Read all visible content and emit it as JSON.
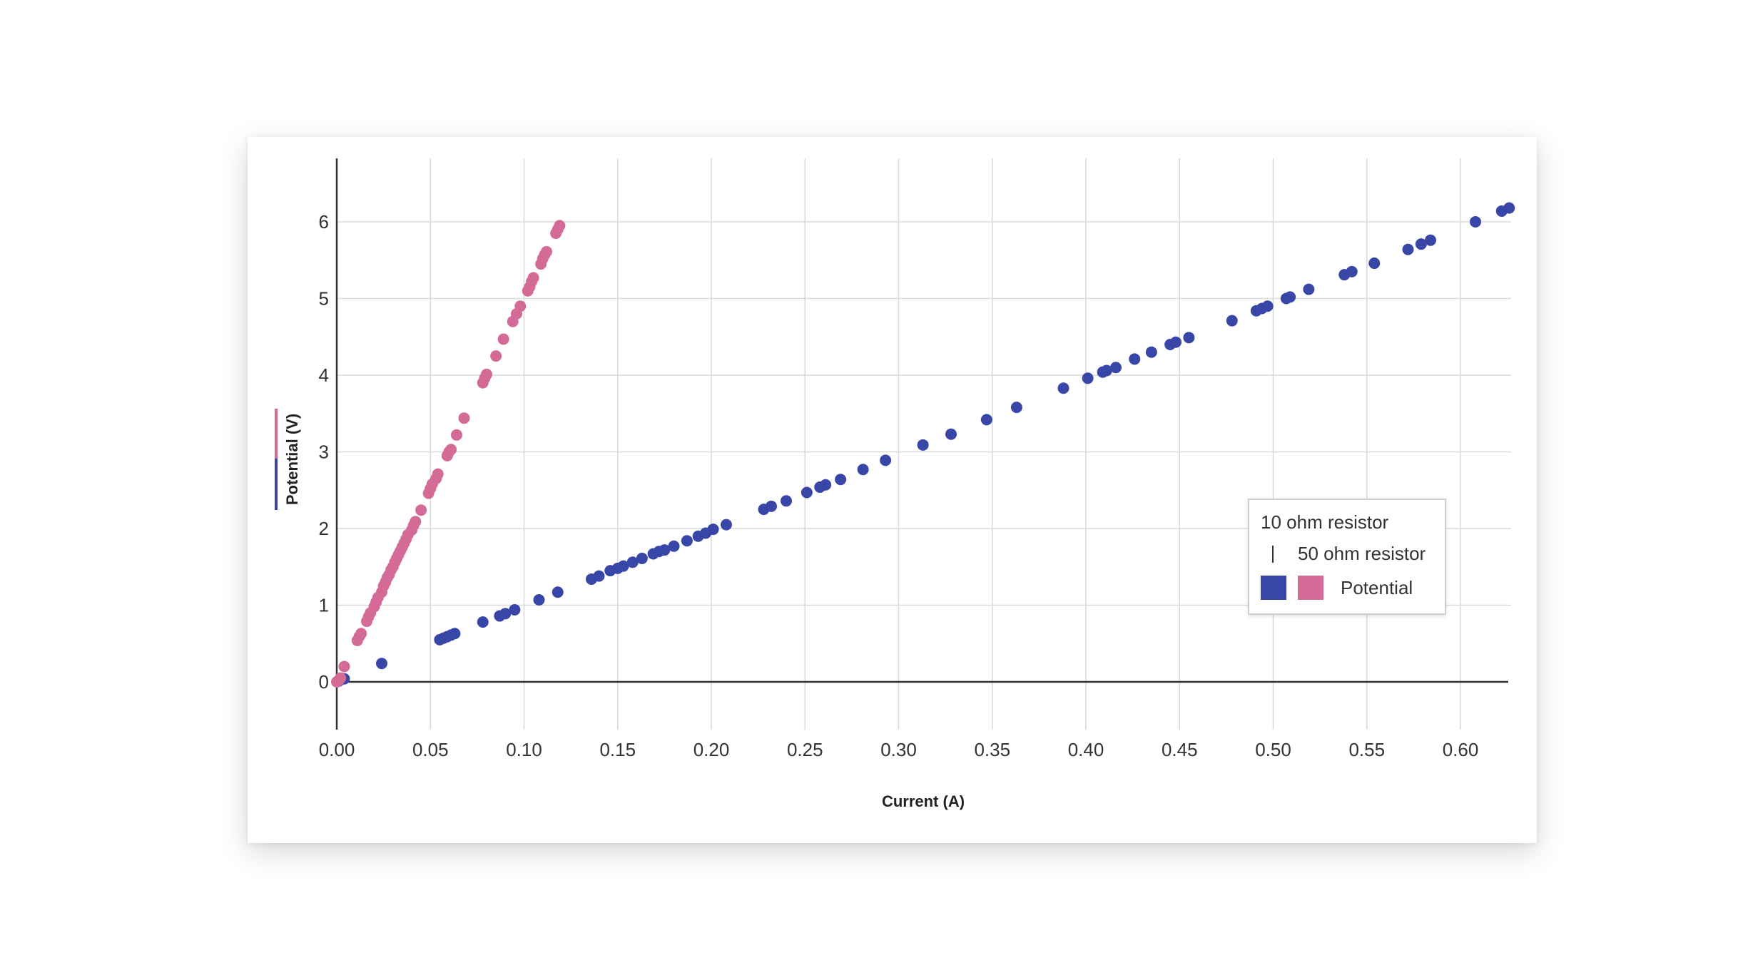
{
  "colors": {
    "series_10ohm": "#3846a8",
    "series_50ohm": "#d46a96",
    "grid": "#d9d9d9",
    "axis": "#333333"
  },
  "legend": {
    "title": "10 ohm resistor",
    "row2": "50 ohm resistor",
    "row3": "Potential",
    "position": "center-right"
  },
  "chart_data": {
    "type": "scatter",
    "xlabel": "Current (A)",
    "ylabel": "Potential (V)",
    "xlim": [
      0,
      0.63
    ],
    "ylim": [
      -0.6,
      6.8
    ],
    "xticks": [
      "0.00",
      "0.05",
      "0.10",
      "0.15",
      "0.20",
      "0.25",
      "0.30",
      "0.35",
      "0.40",
      "0.45",
      "0.50",
      "0.55",
      "0.60"
    ],
    "yticks": [
      "0",
      "1",
      "2",
      "3",
      "4",
      "5",
      "6"
    ],
    "grid": true,
    "series": [
      {
        "name": "10 ohm resistor",
        "color": "#3846a8",
        "points": [
          [
            0.001,
            0.01
          ],
          [
            0.004,
            0.04
          ],
          [
            0.024,
            0.24
          ],
          [
            0.055,
            0.55
          ],
          [
            0.057,
            0.57
          ],
          [
            0.059,
            0.59
          ],
          [
            0.061,
            0.61
          ],
          [
            0.063,
            0.63
          ],
          [
            0.078,
            0.78
          ],
          [
            0.087,
            0.86
          ],
          [
            0.09,
            0.89
          ],
          [
            0.095,
            0.94
          ],
          [
            0.108,
            1.07
          ],
          [
            0.118,
            1.17
          ],
          [
            0.136,
            1.34
          ],
          [
            0.14,
            1.38
          ],
          [
            0.146,
            1.45
          ],
          [
            0.15,
            1.48
          ],
          [
            0.153,
            1.51
          ],
          [
            0.158,
            1.56
          ],
          [
            0.163,
            1.61
          ],
          [
            0.169,
            1.67
          ],
          [
            0.172,
            1.7
          ],
          [
            0.175,
            1.72
          ],
          [
            0.18,
            1.77
          ],
          [
            0.187,
            1.84
          ],
          [
            0.193,
            1.9
          ],
          [
            0.197,
            1.94
          ],
          [
            0.201,
            1.99
          ],
          [
            0.208,
            2.05
          ],
          [
            0.228,
            2.25
          ],
          [
            0.232,
            2.29
          ],
          [
            0.24,
            2.36
          ],
          [
            0.251,
            2.47
          ],
          [
            0.258,
            2.54
          ],
          [
            0.261,
            2.57
          ],
          [
            0.269,
            2.64
          ],
          [
            0.281,
            2.77
          ],
          [
            0.293,
            2.89
          ],
          [
            0.313,
            3.09
          ],
          [
            0.328,
            3.23
          ],
          [
            0.347,
            3.42
          ],
          [
            0.363,
            3.58
          ],
          [
            0.388,
            3.83
          ],
          [
            0.401,
            3.96
          ],
          [
            0.409,
            4.04
          ],
          [
            0.411,
            4.06
          ],
          [
            0.416,
            4.1
          ],
          [
            0.426,
            4.21
          ],
          [
            0.435,
            4.3
          ],
          [
            0.445,
            4.4
          ],
          [
            0.448,
            4.43
          ],
          [
            0.455,
            4.49
          ],
          [
            0.478,
            4.71
          ],
          [
            0.491,
            4.84
          ],
          [
            0.494,
            4.87
          ],
          [
            0.497,
            4.9
          ],
          [
            0.507,
            5.0
          ],
          [
            0.509,
            5.02
          ],
          [
            0.519,
            5.12
          ],
          [
            0.538,
            5.31
          ],
          [
            0.542,
            5.35
          ],
          [
            0.554,
            5.46
          ],
          [
            0.572,
            5.64
          ],
          [
            0.579,
            5.71
          ],
          [
            0.584,
            5.76
          ],
          [
            0.608,
            6.0
          ],
          [
            0.622,
            6.14
          ],
          [
            0.626,
            6.18
          ]
        ]
      },
      {
        "name": "50 ohm resistor",
        "color": "#d46a96",
        "points": [
          [
            0.0,
            0.0
          ],
          [
            0.001,
            0.02
          ],
          [
            0.002,
            0.05
          ],
          [
            0.004,
            0.2
          ],
          [
            0.011,
            0.54
          ],
          [
            0.012,
            0.59
          ],
          [
            0.013,
            0.63
          ],
          [
            0.016,
            0.79
          ],
          [
            0.017,
            0.85
          ],
          [
            0.018,
            0.9
          ],
          [
            0.02,
            0.98
          ],
          [
            0.021,
            1.04
          ],
          [
            0.022,
            1.1
          ],
          [
            0.024,
            1.17
          ],
          [
            0.025,
            1.25
          ],
          [
            0.026,
            1.3
          ],
          [
            0.027,
            1.36
          ],
          [
            0.028,
            1.4
          ],
          [
            0.029,
            1.46
          ],
          [
            0.03,
            1.5
          ],
          [
            0.031,
            1.56
          ],
          [
            0.032,
            1.61
          ],
          [
            0.033,
            1.66
          ],
          [
            0.034,
            1.71
          ],
          [
            0.035,
            1.76
          ],
          [
            0.036,
            1.81
          ],
          [
            0.037,
            1.86
          ],
          [
            0.038,
            1.92
          ],
          [
            0.04,
            1.98
          ],
          [
            0.041,
            2.04
          ],
          [
            0.042,
            2.09
          ],
          [
            0.045,
            2.24
          ],
          [
            0.049,
            2.46
          ],
          [
            0.05,
            2.52
          ],
          [
            0.051,
            2.58
          ],
          [
            0.053,
            2.65
          ],
          [
            0.054,
            2.71
          ],
          [
            0.059,
            2.95
          ],
          [
            0.06,
            3.0
          ],
          [
            0.061,
            3.03
          ],
          [
            0.064,
            3.22
          ],
          [
            0.068,
            3.44
          ],
          [
            0.078,
            3.9
          ],
          [
            0.079,
            3.96
          ],
          [
            0.08,
            4.01
          ],
          [
            0.085,
            4.25
          ],
          [
            0.089,
            4.47
          ],
          [
            0.094,
            4.7
          ],
          [
            0.096,
            4.8
          ],
          [
            0.098,
            4.9
          ],
          [
            0.102,
            5.1
          ],
          [
            0.103,
            5.15
          ],
          [
            0.104,
            5.22
          ],
          [
            0.105,
            5.27
          ],
          [
            0.109,
            5.45
          ],
          [
            0.11,
            5.52
          ],
          [
            0.111,
            5.57
          ],
          [
            0.112,
            5.61
          ],
          [
            0.117,
            5.85
          ],
          [
            0.118,
            5.9
          ],
          [
            0.119,
            5.95
          ]
        ]
      }
    ]
  }
}
